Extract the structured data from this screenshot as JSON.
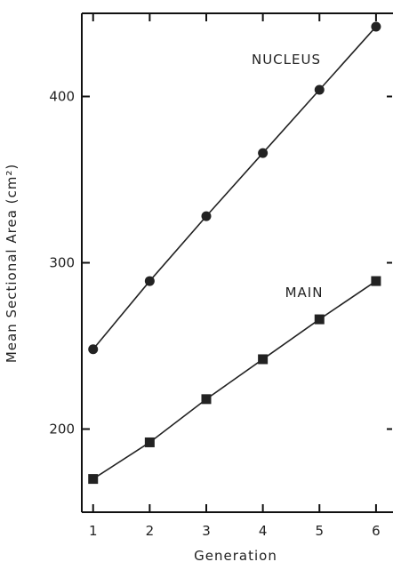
{
  "chart_data": {
    "type": "line",
    "title": "",
    "xlabel": "Generation",
    "ylabel": "Mean Sectional Area (cm²)",
    "x": [
      1,
      2,
      3,
      4,
      5,
      6
    ],
    "xlim": [
      0.8,
      6.3
    ],
    "ylim": [
      150,
      450
    ],
    "x_ticks": [
      "1",
      "2",
      "3",
      "4",
      "5",
      "6"
    ],
    "y_ticks": [
      200,
      300,
      400
    ],
    "y_tick_labels": [
      "200",
      "300",
      "400"
    ],
    "grid": false,
    "series": [
      {
        "name": "NUCLEUS",
        "marker": "circle",
        "values": [
          248,
          289,
          328,
          366,
          404,
          442
        ]
      },
      {
        "name": "MAIN",
        "marker": "square",
        "values": [
          170,
          192,
          218,
          242,
          266,
          289
        ]
      }
    ]
  }
}
